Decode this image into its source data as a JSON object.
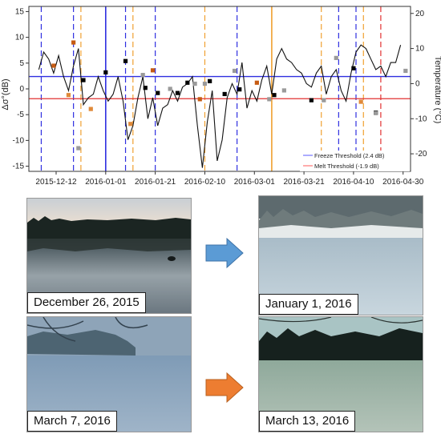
{
  "chart_data": {
    "type": "line",
    "ylabel_left": "Δσ°(dB)",
    "ylabel_right": "Temperature (°C)",
    "ylim_left": [
      -16,
      16
    ],
    "ylim_right": [
      -25,
      22
    ],
    "yticks_left": [
      -15,
      -10,
      -5,
      0,
      5,
      10,
      15
    ],
    "yticks_right": [
      -20,
      -10,
      0,
      10,
      20
    ],
    "xlim": [
      "2015-12-01",
      "2016-05-03"
    ],
    "xtick_labels": [
      "2015-12-12",
      "2016-01-01",
      "2016-01-21",
      "2016-02-10",
      "2016-03-01",
      "2016-03-21",
      "2016-04-10",
      "2016-04-30"
    ],
    "xtick_dates": [
      "2015-12-12",
      "2016-01-01",
      "2016-01-21",
      "2016-02-10",
      "2016-03-01",
      "2016-03-21",
      "2016-04-10",
      "2016-04-30"
    ],
    "freeze_threshold": 2.4,
    "melt_threshold": -1.9,
    "legend": [
      {
        "label": "Freeze Threshold (2.4 dB)",
        "color": "#5a5aff"
      },
      {
        "label": "Melt Threshold (-1.9 dB)",
        "color": "#ff5a5a"
      }
    ],
    "legend_position": "bottom-right",
    "temperature_series": {
      "dates": [
        "2015-12-05",
        "2015-12-07",
        "2015-12-09",
        "2015-12-11",
        "2015-12-13",
        "2015-12-15",
        "2015-12-17",
        "2015-12-19",
        "2015-12-21",
        "2015-12-23",
        "2015-12-25",
        "2015-12-27",
        "2015-12-29",
        "2015-12-31",
        "2016-01-02",
        "2016-01-04",
        "2016-01-06",
        "2016-01-08",
        "2016-01-10",
        "2016-01-12",
        "2016-01-14",
        "2016-01-16",
        "2016-01-18",
        "2016-01-20",
        "2016-01-22",
        "2016-01-24",
        "2016-01-26",
        "2016-01-28",
        "2016-01-30",
        "2016-02-01",
        "2016-02-03",
        "2016-02-05",
        "2016-02-07",
        "2016-02-09",
        "2016-02-11",
        "2016-02-13",
        "2016-02-15",
        "2016-02-17",
        "2016-02-19",
        "2016-02-21",
        "2016-02-23",
        "2016-02-25",
        "2016-02-27",
        "2016-02-29",
        "2016-03-02",
        "2016-03-04",
        "2016-03-06",
        "2016-03-08",
        "2016-03-10",
        "2016-03-12",
        "2016-03-14",
        "2016-03-16",
        "2016-03-18",
        "2016-03-20",
        "2016-03-22",
        "2016-03-24",
        "2016-03-26",
        "2016-03-28",
        "2016-03-30",
        "2016-04-01",
        "2016-04-03",
        "2016-04-05",
        "2016-04-07",
        "2016-04-09",
        "2016-04-11",
        "2016-04-13",
        "2016-04-15",
        "2016-04-17",
        "2016-04-19",
        "2016-04-21",
        "2016-04-23",
        "2016-04-25",
        "2016-04-27",
        "2016-04-29"
      ],
      "values_c": [
        4,
        9,
        7,
        3,
        8,
        2,
        -2,
        5,
        10,
        -6,
        -4,
        -3,
        2,
        -2,
        -5,
        -3,
        2,
        -5,
        -16,
        -12,
        -4,
        2,
        -10,
        -4,
        -12,
        -7,
        -6,
        -2,
        -5,
        -1,
        0,
        2,
        -12,
        -24,
        -11,
        -2,
        -22,
        -16,
        -4,
        0,
        -3,
        6,
        -7,
        -2,
        -5,
        1,
        5,
        -3,
        7,
        10,
        7,
        6,
        4,
        3,
        0,
        -1,
        3,
        5,
        -3,
        2,
        4,
        -2,
        -5,
        3,
        9,
        11,
        10,
        7,
        4,
        5,
        2,
        6,
        6,
        11
      ]
    },
    "backscatter_points": [
      {
        "date": "2015-12-11",
        "value": 4.5,
        "color": "#c65b12"
      },
      {
        "date": "2015-12-17",
        "value": -1.2,
        "color": "#e08a3a"
      },
      {
        "date": "2015-12-19",
        "value": 9.0,
        "color": "#c65b12"
      },
      {
        "date": "2015-12-21",
        "value": -11.5,
        "color": "#9a9a9a"
      },
      {
        "date": "2015-12-23",
        "value": 1.7,
        "color": "#000000"
      },
      {
        "date": "2015-12-26",
        "value": -3.9,
        "color": "#e08a3a"
      },
      {
        "date": "2016-01-01",
        "value": 3.2,
        "color": "#000000"
      },
      {
        "date": "2016-01-09",
        "value": 5.4,
        "color": "#000000"
      },
      {
        "date": "2016-01-11",
        "value": -6.8,
        "color": "#e08a3a"
      },
      {
        "date": "2016-01-16",
        "value": 2.7,
        "color": "#9a9a9a"
      },
      {
        "date": "2016-01-17",
        "value": 0.2,
        "color": "#000000"
      },
      {
        "date": "2016-01-20",
        "value": 3.6,
        "color": "#c65b12"
      },
      {
        "date": "2016-01-22",
        "value": -0.8,
        "color": "#000000"
      },
      {
        "date": "2016-01-27",
        "value": 0.0,
        "color": "#9a9a9a"
      },
      {
        "date": "2016-01-30",
        "value": -0.8,
        "color": "#000000"
      },
      {
        "date": "2016-02-03",
        "value": 1.2,
        "color": "#000000"
      },
      {
        "date": "2016-02-06",
        "value": 1.0,
        "color": "#9a9a9a"
      },
      {
        "date": "2016-02-08",
        "value": -2.0,
        "color": "#c65b12"
      },
      {
        "date": "2016-02-10",
        "value": 1.0,
        "color": "#9a9a9a"
      },
      {
        "date": "2016-02-12",
        "value": 1.5,
        "color": "#000000"
      },
      {
        "date": "2016-02-18",
        "value": -1.0,
        "color": "#000000"
      },
      {
        "date": "2016-02-22",
        "value": 3.5,
        "color": "#9a9a9a"
      },
      {
        "date": "2016-02-24",
        "value": -0.1,
        "color": "#000000"
      },
      {
        "date": "2016-03-02",
        "value": 1.2,
        "color": "#c65b12"
      },
      {
        "date": "2016-03-07",
        "value": -2.0,
        "color": "#9a9a9a"
      },
      {
        "date": "2016-03-09",
        "value": -1.2,
        "color": "#000000"
      },
      {
        "date": "2016-03-13",
        "value": -0.3,
        "color": "#9a9a9a"
      },
      {
        "date": "2016-03-24",
        "value": -2.2,
        "color": "#000000"
      },
      {
        "date": "2016-03-29",
        "value": -2.2,
        "color": "#9a9a9a"
      },
      {
        "date": "2016-04-03",
        "value": 6.0,
        "color": "#9a9a9a"
      },
      {
        "date": "2016-04-10",
        "value": 4.0,
        "color": "#000000"
      },
      {
        "date": "2016-04-13",
        "value": -2.5,
        "color": "#e08a3a"
      },
      {
        "date": "2016-04-19",
        "value": -4.6,
        "color": "#000000"
      },
      {
        "date": "2016-04-19",
        "value": -4.7,
        "color": "#9a9a9a"
      },
      {
        "date": "2016-05-01",
        "value": 3.5,
        "color": "#9a9a9a"
      }
    ],
    "event_lines": [
      {
        "date": "2015-12-06",
        "color": "#2f2fe0",
        "style": "dashed"
      },
      {
        "date": "2015-12-19",
        "color": "#2f2fe0",
        "style": "dashed"
      },
      {
        "date": "2015-12-22",
        "color": "#f0a030",
        "style": "dashed"
      },
      {
        "date": "2016-01-01",
        "color": "#2f2fe0",
        "style": "solid"
      },
      {
        "date": "2016-01-09",
        "color": "#2f2fe0",
        "style": "dashed"
      },
      {
        "date": "2016-01-12",
        "color": "#f0a030",
        "style": "dashed"
      },
      {
        "date": "2016-01-21",
        "color": "#2f2fe0",
        "style": "dashed"
      },
      {
        "date": "2016-02-10",
        "color": "#f0a030",
        "style": "dashed"
      },
      {
        "date": "2016-02-23",
        "color": "#2f2fe0",
        "style": "dashed"
      },
      {
        "date": "2016-03-08",
        "color": "#f0a030",
        "style": "solid"
      },
      {
        "date": "2016-03-28",
        "color": "#f0a030",
        "style": "dashed"
      },
      {
        "date": "2016-04-04",
        "color": "#2f2fe0",
        "style": "dashed"
      },
      {
        "date": "2016-04-11",
        "color": "#2f2fe0",
        "style": "dashed"
      },
      {
        "date": "2016-04-14",
        "color": "#f0a030",
        "style": "dashed"
      },
      {
        "date": "2016-04-21",
        "color": "#e03030",
        "style": "dashed"
      }
    ]
  },
  "photos": [
    {
      "caption": "December 26, 2015"
    },
    {
      "caption": "January 1, 2016"
    },
    {
      "caption": "March 7, 2016"
    },
    {
      "caption": "March 13, 2016"
    }
  ],
  "arrows": [
    {
      "name": "freeze-transition-arrow",
      "color": "#5b9bd5"
    },
    {
      "name": "melt-transition-arrow",
      "color": "#ed7d31"
    }
  ]
}
